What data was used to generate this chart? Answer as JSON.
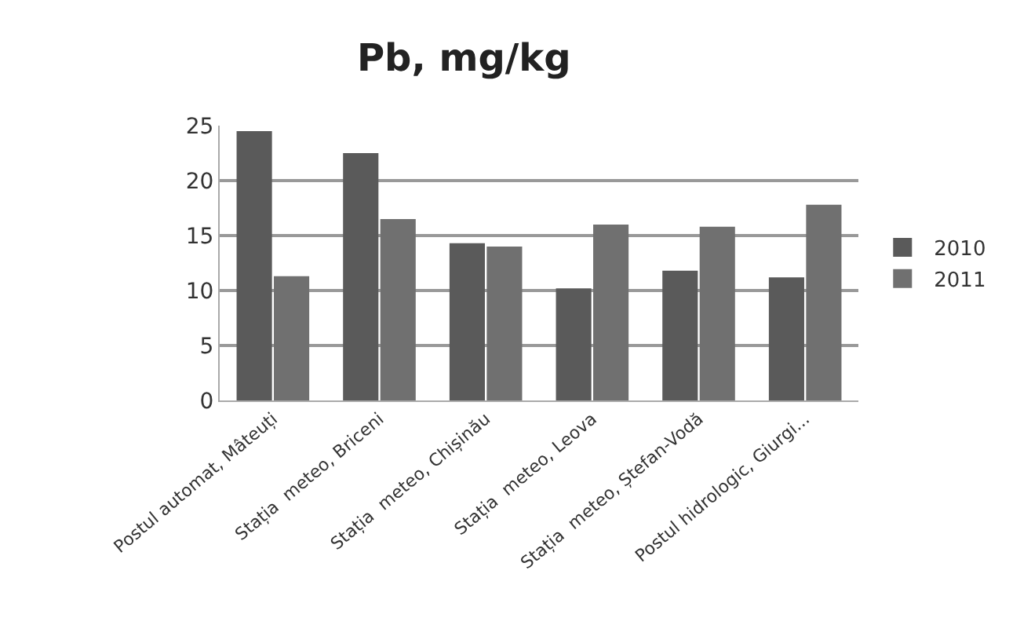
{
  "chart_data": {
    "type": "bar",
    "title": "Pb, mg/kg",
    "categories": [
      "Postul automat, Mâteuți",
      "Stația  meteo, Briceni",
      "Stația  meteo, Chișinău",
      "Stația  meteo, Leova",
      "Stația  meteo, Ștefan-Vodă",
      "Postul hidrologic, Giurgi..."
    ],
    "series": [
      {
        "name": "2010",
        "color": "#5a5a5a",
        "values": [
          24.5,
          22.5,
          14.3,
          10.2,
          11.8,
          11.2
        ]
      },
      {
        "name": "2011",
        "color": "#707070",
        "values": [
          11.3,
          16.5,
          14,
          16,
          15.8,
          17.8
        ]
      }
    ],
    "ylim": [
      0,
      25
    ],
    "yticks": [
      0,
      5,
      10,
      15,
      20,
      25
    ],
    "grid": "y",
    "legend": "right"
  }
}
